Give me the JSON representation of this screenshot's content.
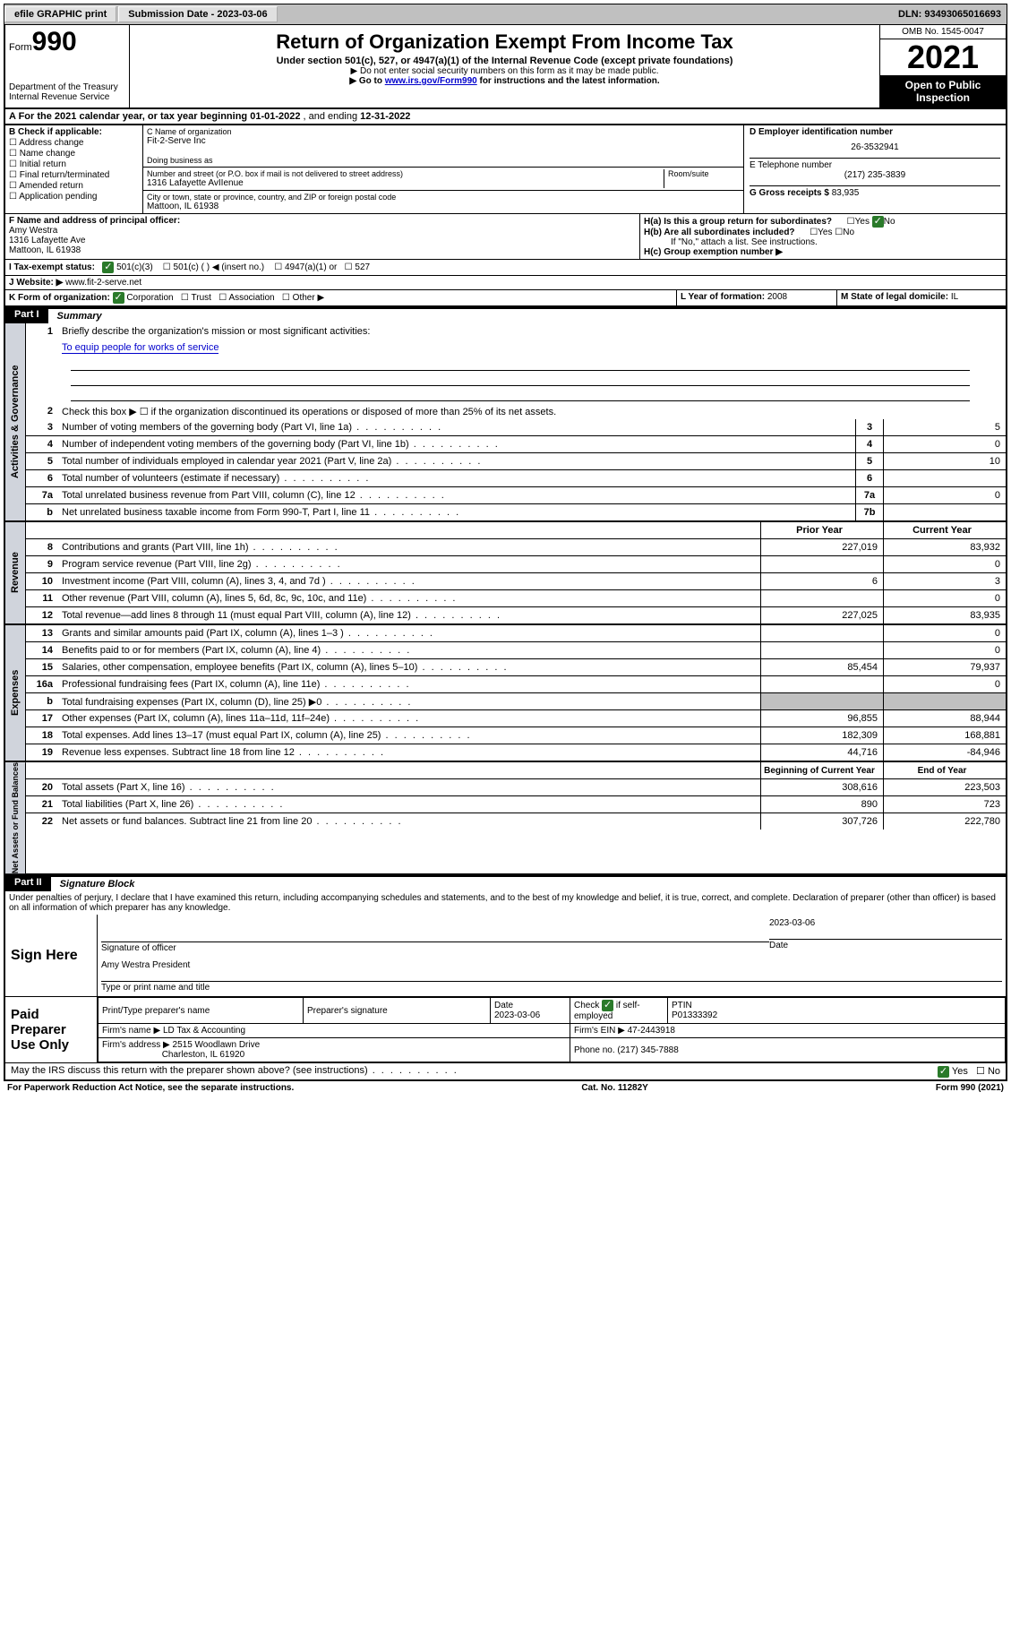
{
  "topbar": {
    "efile": "efile GRAPHIC print",
    "submission_label": "Submission Date - ",
    "submission_date": "2023-03-06",
    "dln_label": "DLN: ",
    "dln": "93493065016693"
  },
  "header": {
    "form_prefix": "Form",
    "form_num": "990",
    "dept": "Department of the Treasury",
    "irs": "Internal Revenue Service",
    "title": "Return of Organization Exempt From Income Tax",
    "sub1": "Under section 501(c), 527, or 4947(a)(1) of the Internal Revenue Code (except private foundations)",
    "sub2": "▶ Do not enter social security numbers on this form as it may be made public.",
    "sub3_pre": "▶ Go to ",
    "sub3_link": "www.irs.gov/Form990",
    "sub3_post": " for instructions and the latest information.",
    "omb": "OMB No. 1545-0047",
    "year": "2021",
    "open": "Open to Public Inspection"
  },
  "row_a": {
    "label": "A For the 2021 calendar year, or tax year beginning ",
    "begin": "01-01-2022",
    "mid": " , and ending ",
    "end": "12-31-2022"
  },
  "col_b": {
    "label": "B Check if applicable:",
    "items": [
      "Address change",
      "Name change",
      "Initial return",
      "Final return/terminated",
      "Amended return",
      "Application pending"
    ]
  },
  "col_c": {
    "name_label": "C Name of organization",
    "name": "Fit-2-Serve Inc",
    "dba_label": "Doing business as",
    "addr_label": "Number and street (or P.O. box if mail is not delivered to street address)",
    "room_label": "Room/suite",
    "addr": "1316 Lafayette AvIIenue",
    "city_label": "City or town, state or province, country, and ZIP or foreign postal code",
    "city": "Mattoon, IL  61938"
  },
  "col_d": {
    "ein_label": "D Employer identification number",
    "ein": "26-3532941",
    "phone_label": "E Telephone number",
    "phone": "(217) 235-3839",
    "gross_label": "G Gross receipts $ ",
    "gross": "83,935"
  },
  "row_f": {
    "label": "F  Name and address of principal officer:",
    "name": "Amy Westra",
    "addr1": "1316 Lafayette Ave",
    "addr2": "Mattoon, IL  61938"
  },
  "row_h": {
    "ha": "H(a)  Is this a group return for subordinates?",
    "ha_ans": "No",
    "hb": "H(b)  Are all subordinates included?",
    "hb_note": "If \"No,\" attach a list. See instructions.",
    "hc": "H(c)  Group exemption number ▶"
  },
  "row_i": {
    "label": "I   Tax-exempt status:",
    "opts": [
      "501(c)(3)",
      "501(c) (  ) ◀ (insert no.)",
      "4947(a)(1) or",
      "527"
    ]
  },
  "row_j": {
    "label": "J   Website: ▶ ",
    "site": "www.fit-2-serve.net"
  },
  "row_k": {
    "label": "K Form of organization: ",
    "opts": [
      "Corporation",
      "Trust",
      "Association",
      "Other ▶"
    ],
    "l_label": "L Year of formation: ",
    "l_val": "2008",
    "m_label": "M State of legal domicile: ",
    "m_val": "IL"
  },
  "part1": {
    "num": "Part I",
    "title": "Summary"
  },
  "summary": {
    "l1": "Briefly describe the organization's mission or most significant activities:",
    "mission": "To equip people for works of service",
    "l2": "Check this box ▶ ☐  if the organization discontinued its operations or disposed of more than 25% of its net assets.",
    "lines": [
      {
        "n": "3",
        "t": "Number of voting members of the governing body (Part VI, line 1a)",
        "box": "3",
        "v": "5"
      },
      {
        "n": "4",
        "t": "Number of independent voting members of the governing body (Part VI, line 1b)",
        "box": "4",
        "v": "0"
      },
      {
        "n": "5",
        "t": "Total number of individuals employed in calendar year 2021 (Part V, line 2a)",
        "box": "5",
        "v": "10"
      },
      {
        "n": "6",
        "t": "Total number of volunteers (estimate if necessary)",
        "box": "6",
        "v": ""
      },
      {
        "n": "7a",
        "t": "Total unrelated business revenue from Part VIII, column (C), line 12",
        "box": "7a",
        "v": "0"
      },
      {
        "n": "b",
        "t": "Net unrelated business taxable income from Form 990-T, Part I, line 11",
        "box": "7b",
        "v": ""
      }
    ],
    "col_hdr_prior": "Prior Year",
    "col_hdr_current": "Current Year",
    "rev": [
      {
        "n": "8",
        "t": "Contributions and grants (Part VIII, line 1h)",
        "p": "227,019",
        "c": "83,932"
      },
      {
        "n": "9",
        "t": "Program service revenue (Part VIII, line 2g)",
        "p": "",
        "c": "0"
      },
      {
        "n": "10",
        "t": "Investment income (Part VIII, column (A), lines 3, 4, and 7d )",
        "p": "6",
        "c": "3"
      },
      {
        "n": "11",
        "t": "Other revenue (Part VIII, column (A), lines 5, 6d, 8c, 9c, 10c, and 11e)",
        "p": "",
        "c": "0"
      },
      {
        "n": "12",
        "t": "Total revenue—add lines 8 through 11 (must equal Part VIII, column (A), line 12)",
        "p": "227,025",
        "c": "83,935"
      }
    ],
    "exp": [
      {
        "n": "13",
        "t": "Grants and similar amounts paid (Part IX, column (A), lines 1–3 )",
        "p": "",
        "c": "0"
      },
      {
        "n": "14",
        "t": "Benefits paid to or for members (Part IX, column (A), line 4)",
        "p": "",
        "c": "0"
      },
      {
        "n": "15",
        "t": "Salaries, other compensation, employee benefits (Part IX, column (A), lines 5–10)",
        "p": "85,454",
        "c": "79,937"
      },
      {
        "n": "16a",
        "t": "Professional fundraising fees (Part IX, column (A), line 11e)",
        "p": "",
        "c": "0"
      },
      {
        "n": "b",
        "t": "Total fundraising expenses (Part IX, column (D), line 25) ▶0",
        "p": "gray",
        "c": "gray"
      },
      {
        "n": "17",
        "t": "Other expenses (Part IX, column (A), lines 11a–11d, 11f–24e)",
        "p": "96,855",
        "c": "88,944"
      },
      {
        "n": "18",
        "t": "Total expenses. Add lines 13–17 (must equal Part IX, column (A), line 25)",
        "p": "182,309",
        "c": "168,881"
      },
      {
        "n": "19",
        "t": "Revenue less expenses. Subtract line 18 from line 12",
        "p": "44,716",
        "c": "-84,946"
      }
    ],
    "net_hdr_begin": "Beginning of Current Year",
    "net_hdr_end": "End of Year",
    "net": [
      {
        "n": "20",
        "t": "Total assets (Part X, line 16)",
        "p": "308,616",
        "c": "223,503"
      },
      {
        "n": "21",
        "t": "Total liabilities (Part X, line 26)",
        "p": "890",
        "c": "723"
      },
      {
        "n": "22",
        "t": "Net assets or fund balances. Subtract line 21 from line 20",
        "p": "307,726",
        "c": "222,780"
      }
    ]
  },
  "part2": {
    "num": "Part II",
    "title": "Signature Block",
    "penalty": "Under penalties of perjury, I declare that I have examined this return, including accompanying schedules and statements, and to the best of my knowledge and belief, it is true, correct, and complete. Declaration of preparer (other than officer) is based on all information of which preparer has any knowledge."
  },
  "sign": {
    "label": "Sign Here",
    "sig_label": "Signature of officer",
    "date": "2023-03-06",
    "date_label": "Date",
    "name": "Amy Westra  President",
    "name_label": "Type or print name and title"
  },
  "prep": {
    "label": "Paid Preparer Use Only",
    "h1": "Print/Type preparer's name",
    "h2": "Preparer's signature",
    "h3": "Date",
    "h3v": "2023-03-06",
    "h4": "Check ",
    "h4b": " if self-employed",
    "h5": "PTIN",
    "h5v": "P01333392",
    "firm_name_l": "Firm's name    ▶ ",
    "firm_name": "LD Tax & Accounting",
    "firm_ein_l": "Firm's EIN ▶ ",
    "firm_ein": "47-2443918",
    "firm_addr_l": "Firm's address ▶ ",
    "firm_addr1": "2515 Woodlawn Drive",
    "firm_addr2": "Charleston, IL  61920",
    "firm_phone_l": "Phone no. ",
    "firm_phone": "(217) 345-7888"
  },
  "discuss": {
    "q": "May the IRS discuss this return with the preparer shown above? (see instructions)",
    "yes": "Yes",
    "no": "No"
  },
  "footer": {
    "l": "For Paperwork Reduction Act Notice, see the separate instructions.",
    "m": "Cat. No. 11282Y",
    "r": "Form 990 (2021)"
  },
  "vtabs": {
    "gov": "Activities & Governance",
    "rev": "Revenue",
    "exp": "Expenses",
    "net": "Net Assets or Fund Balances"
  }
}
